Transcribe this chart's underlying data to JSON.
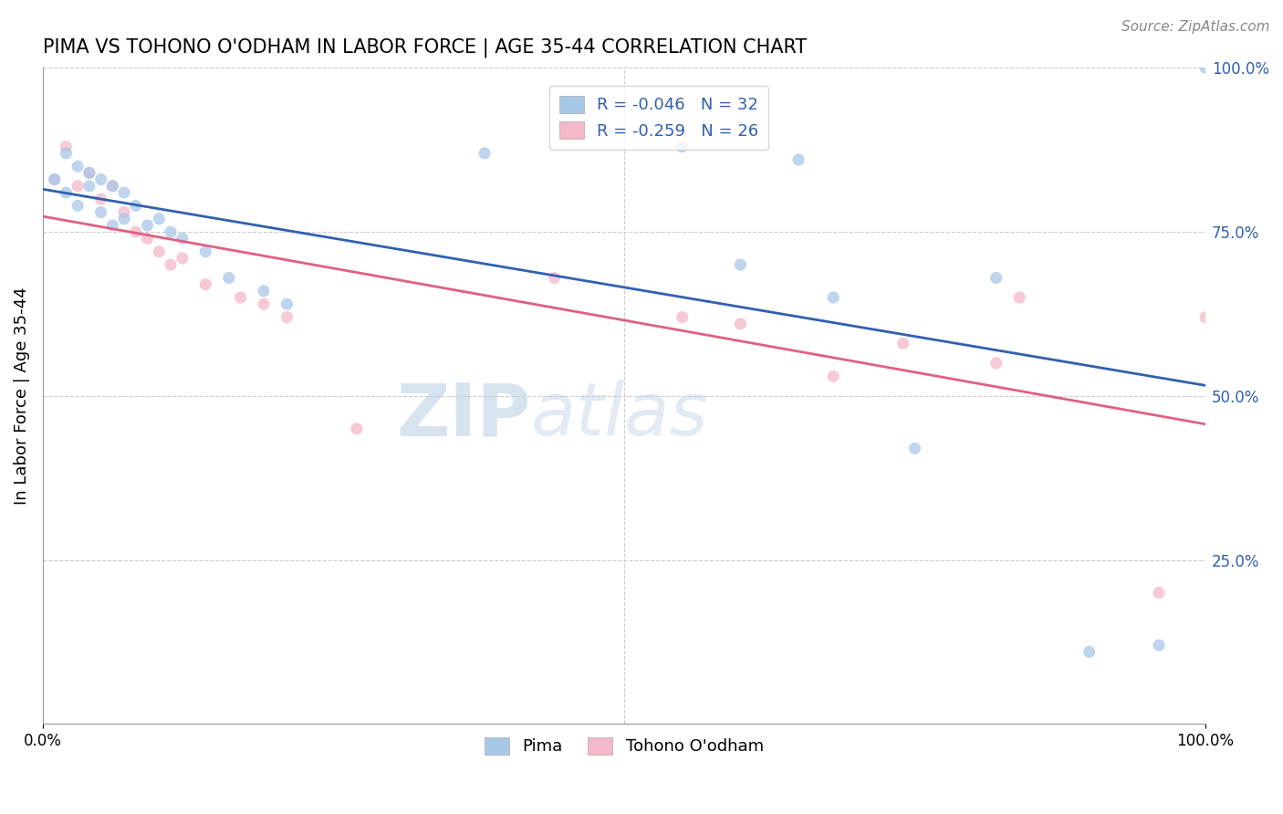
{
  "title": "PIMA VS TOHONO O'ODHAM IN LABOR FORCE | AGE 35-44 CORRELATION CHART",
  "source_text": "Source: ZipAtlas.com",
  "ylabel": "In Labor Force | Age 35-44",
  "xlim": [
    0,
    1
  ],
  "ylim": [
    0,
    1
  ],
  "watermark_zip": "ZIP",
  "watermark_atlas": "atlas",
  "pima_R": -0.046,
  "pima_N": 32,
  "tohono_R": -0.259,
  "tohono_N": 26,
  "pima_color": "#a8c8e8",
  "tohono_color": "#f5b8c8",
  "pima_line_color": "#3060b0",
  "tohono_line_color": "#e06080",
  "grid_color": "#cccccc",
  "background_color": "#ffffff",
  "pima_x": [
    0.01,
    0.02,
    0.02,
    0.03,
    0.03,
    0.04,
    0.04,
    0.05,
    0.05,
    0.06,
    0.06,
    0.07,
    0.07,
    0.08,
    0.09,
    0.1,
    0.11,
    0.12,
    0.14,
    0.16,
    0.19,
    0.21,
    0.38,
    0.55,
    0.6,
    0.65,
    0.68,
    0.75,
    0.82,
    0.9,
    0.96,
    1.0
  ],
  "pima_y": [
    0.83,
    0.87,
    0.81,
    0.85,
    0.79,
    0.84,
    0.82,
    0.83,
    0.78,
    0.82,
    0.76,
    0.81,
    0.77,
    0.79,
    0.76,
    0.77,
    0.75,
    0.74,
    0.72,
    0.68,
    0.66,
    0.64,
    0.87,
    0.88,
    0.7,
    0.86,
    0.65,
    0.42,
    0.68,
    0.11,
    0.12,
    1.0
  ],
  "tohono_x": [
    0.01,
    0.02,
    0.03,
    0.04,
    0.05,
    0.06,
    0.07,
    0.08,
    0.09,
    0.1,
    0.11,
    0.12,
    0.14,
    0.17,
    0.19,
    0.21,
    0.27,
    0.44,
    0.55,
    0.6,
    0.68,
    0.74,
    0.82,
    0.84,
    0.96,
    1.0
  ],
  "tohono_y": [
    0.83,
    0.88,
    0.82,
    0.84,
    0.8,
    0.82,
    0.78,
    0.75,
    0.74,
    0.72,
    0.7,
    0.71,
    0.67,
    0.65,
    0.64,
    0.62,
    0.45,
    0.68,
    0.62,
    0.61,
    0.53,
    0.58,
    0.55,
    0.65,
    0.2,
    0.62
  ],
  "pima_size": 90,
  "tohono_size": 90
}
